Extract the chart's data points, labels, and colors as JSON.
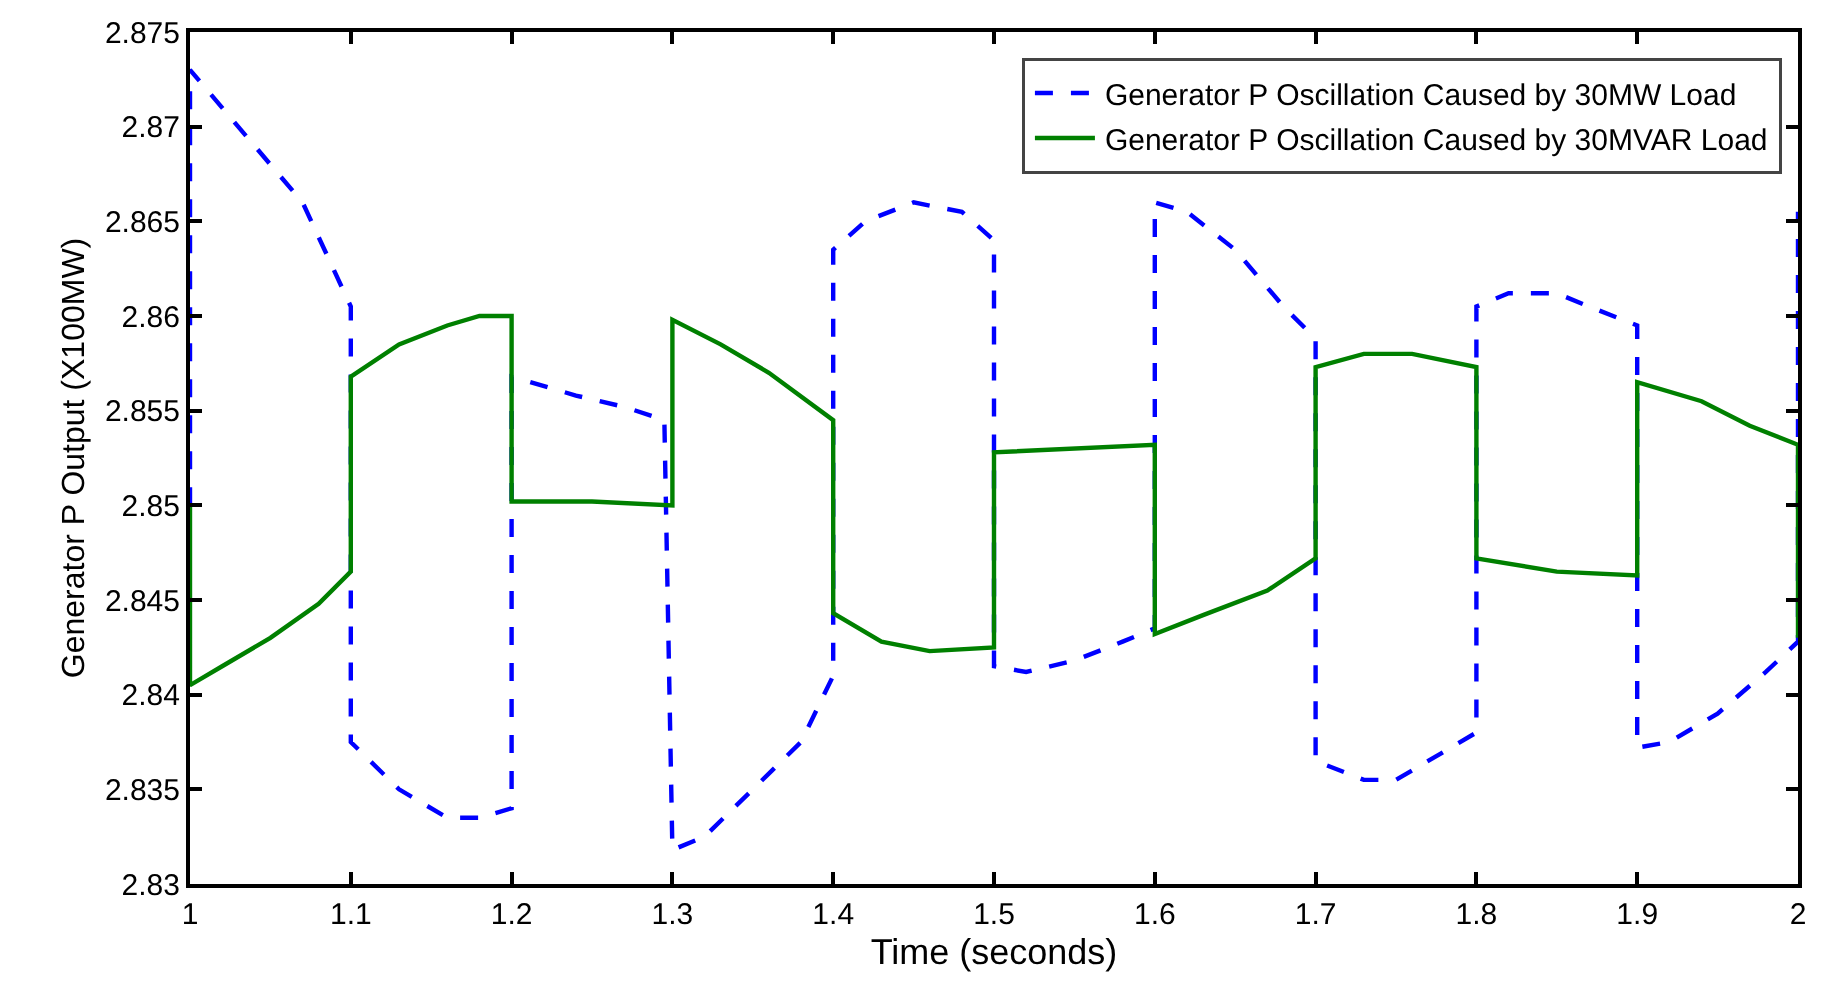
{
  "chart_data": {
    "type": "line",
    "xlabel": "Time (seconds)",
    "ylabel": "Generator P Output (X100MW)",
    "xlim": [
      1,
      2
    ],
    "xticks": [
      1,
      1.1,
      1.2,
      1.3,
      1.4,
      1.5,
      1.6,
      1.7,
      1.8,
      1.9,
      2
    ],
    "ylim": [
      2.83,
      2.875
    ],
    "yticks": [
      2.83,
      2.835,
      2.84,
      2.845,
      2.85,
      2.855,
      2.86,
      2.865,
      2.87,
      2.875
    ],
    "legend": "top right",
    "marker": "none",
    "series": [
      {
        "name": "Generator P Oscillation Caused by 30MW Load",
        "color": "#0000ff",
        "line_style": "dashed",
        "x": [
          1,
          1,
          1.01,
          1.04,
          1.07,
          1.1,
          1.1,
          1.13,
          1.16,
          1.18,
          1.2,
          1.2,
          1.24,
          1.27,
          1.295,
          1.3,
          1.32,
          1.35,
          1.38,
          1.4,
          1.4,
          1.42,
          1.45,
          1.48,
          1.5,
          1.5,
          1.52,
          1.55,
          1.58,
          1.6,
          1.6,
          1.62,
          1.65,
          1.68,
          1.7,
          1.7,
          1.73,
          1.75,
          1.77,
          1.8,
          1.8,
          1.82,
          1.85,
          1.87,
          1.9,
          1.9,
          1.92,
          1.95,
          1.98,
          2,
          2
        ],
        "values": [
          2.85,
          2.873,
          2.872,
          2.869,
          2.866,
          2.8605,
          2.8375,
          2.835,
          2.8335,
          2.8335,
          2.834,
          2.8568,
          2.8558,
          2.8552,
          2.8545,
          2.8318,
          2.8325,
          2.835,
          2.8375,
          2.841,
          2.8635,
          2.865,
          2.866,
          2.8655,
          2.864,
          2.8415,
          2.8412,
          2.8418,
          2.8428,
          2.8435,
          2.866,
          2.8655,
          2.8635,
          2.8605,
          2.8588,
          2.8365,
          2.8355,
          2.8355,
          2.8365,
          2.838,
          2.8605,
          2.8612,
          2.8612,
          2.8605,
          2.8595,
          2.8372,
          2.8375,
          2.839,
          2.8412,
          2.8428,
          2.8655
        ]
      },
      {
        "name": "Generator P Oscillation Caused by 30MVAR Load",
        "color": "#008000",
        "line_style": "solid",
        "x": [
          1,
          1,
          1.02,
          1.05,
          1.08,
          1.1,
          1.1,
          1.13,
          1.16,
          1.18,
          1.2,
          1.2,
          1.25,
          1.3,
          1.3,
          1.33,
          1.36,
          1.4,
          1.4,
          1.43,
          1.46,
          1.5,
          1.5,
          1.6,
          1.6,
          1.63,
          1.67,
          1.7,
          1.7,
          1.73,
          1.76,
          1.8,
          1.8,
          1.85,
          1.9,
          1.9,
          1.94,
          1.97,
          2,
          2
        ],
        "values": [
          2.85,
          2.8405,
          2.8415,
          2.843,
          2.8448,
          2.8465,
          2.8568,
          2.8585,
          2.8595,
          2.86,
          2.86,
          2.8502,
          2.8502,
          2.85,
          2.8598,
          2.8585,
          2.857,
          2.8545,
          2.8443,
          2.8428,
          2.8423,
          2.8425,
          2.8528,
          2.8532,
          2.8432,
          2.8442,
          2.8455,
          2.8472,
          2.8573,
          2.858,
          2.858,
          2.8573,
          2.8472,
          2.8465,
          2.8463,
          2.8565,
          2.8555,
          2.8542,
          2.8532,
          2.843
        ]
      }
    ]
  }
}
